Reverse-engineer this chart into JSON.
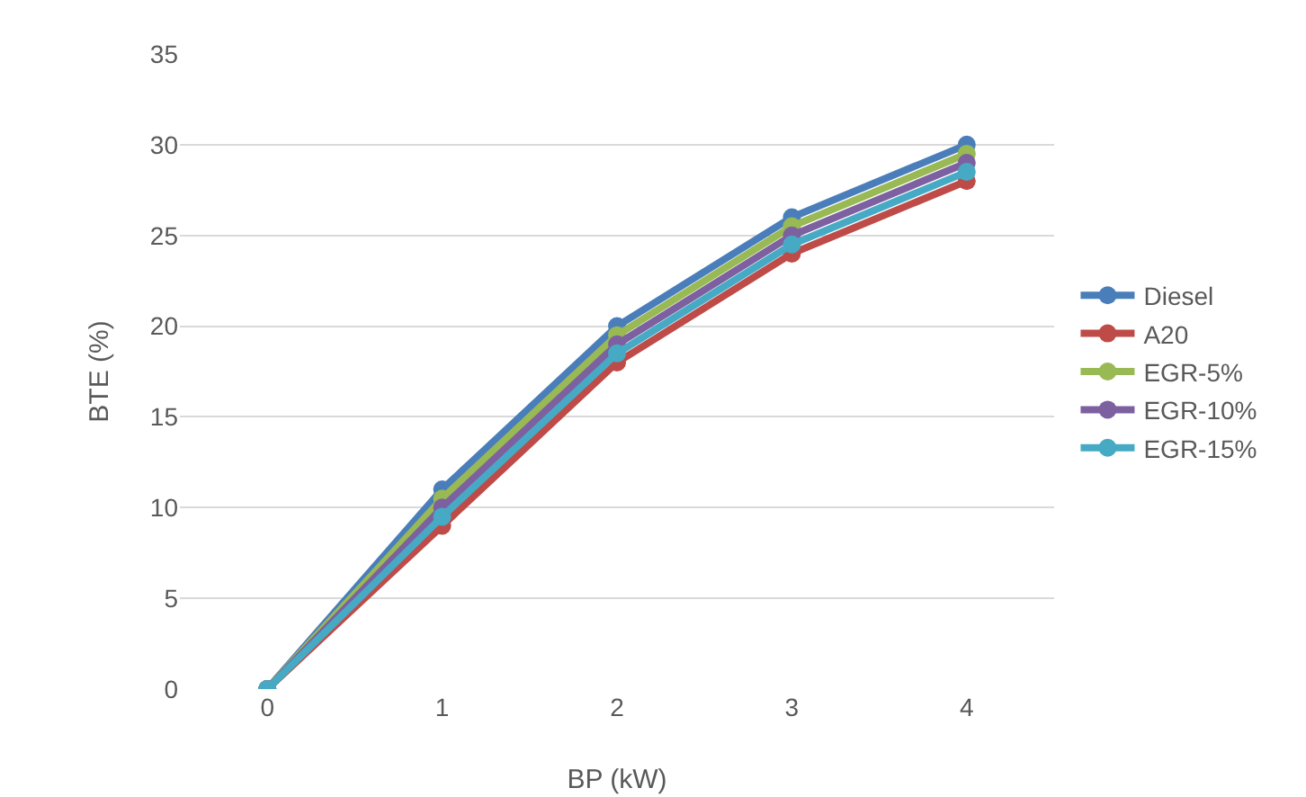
{
  "chart_data": {
    "type": "line",
    "xlabel": "BP (kW)",
    "ylabel": "BTE (%)",
    "categories": [
      "0",
      "1",
      "2",
      "3",
      "4"
    ],
    "series": [
      {
        "name": "Diesel",
        "color": "#4a7ebb",
        "values": [
          0,
          11,
          20,
          26,
          30
        ]
      },
      {
        "name": "A20",
        "color": "#be4b48",
        "values": [
          0,
          9,
          18,
          24,
          28
        ]
      },
      {
        "name": "EGR-5%",
        "color": "#98b954",
        "values": [
          0,
          10.5,
          19.5,
          25.5,
          29.5
        ]
      },
      {
        "name": "EGR-10%",
        "color": "#7d60a0",
        "values": [
          0,
          10,
          19,
          25,
          29
        ]
      },
      {
        "name": "EGR-15%",
        "color": "#46aac5",
        "values": [
          0,
          9.5,
          18.5,
          24.5,
          28.5
        ]
      }
    ],
    "ylim": [
      0,
      35
    ],
    "yticks": [
      0,
      5,
      10,
      15,
      20,
      25,
      30,
      35
    ],
    "grid": "y",
    "legend": "right",
    "marker": "circle",
    "line_style": "solid"
  }
}
